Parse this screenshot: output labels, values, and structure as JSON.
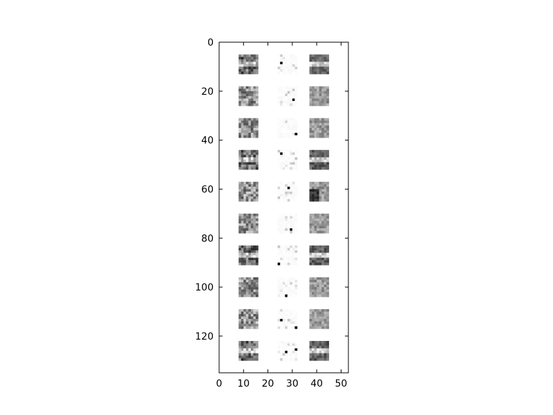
{
  "chart_data": {
    "type": "heatmap",
    "title": "",
    "xlabel": "",
    "ylabel": "",
    "colormap": "gray",
    "xlim": [
      0,
      53
    ],
    "ylim": [
      135,
      0
    ],
    "x_ticks": [
      {
        "value": 0,
        "label": "0"
      },
      {
        "value": 10,
        "label": "10"
      },
      {
        "value": 20,
        "label": "20"
      },
      {
        "value": 30,
        "label": "30"
      },
      {
        "value": 40,
        "label": "40"
      },
      {
        "value": 50,
        "label": "50"
      }
    ],
    "y_ticks": [
      {
        "value": 0,
        "label": "0"
      },
      {
        "value": 20,
        "label": "20"
      },
      {
        "value": 40,
        "label": "40"
      },
      {
        "value": 60,
        "label": "60"
      },
      {
        "value": 80,
        "label": "80"
      },
      {
        "value": 100,
        "label": "100"
      },
      {
        "value": 120,
        "label": "120"
      }
    ],
    "tile_grid": {
      "rows": 10,
      "cols": 3,
      "tile_size": 8,
      "row_starts": [
        5,
        18,
        31,
        44,
        57,
        70,
        83,
        96,
        109,
        122
      ],
      "col_starts": [
        8,
        24,
        37
      ],
      "column_styles": [
        "dense",
        "sparse",
        "smooth"
      ]
    }
  }
}
